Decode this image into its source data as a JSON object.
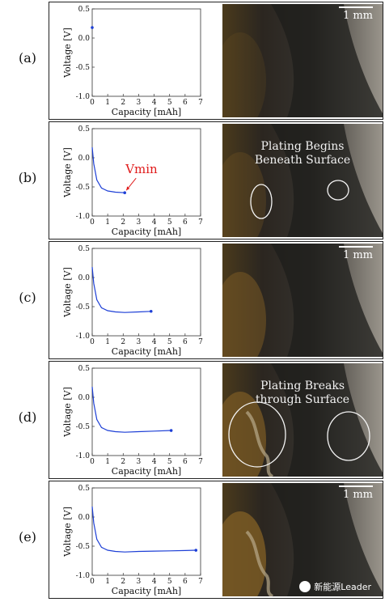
{
  "panels": [
    {
      "label": "(a)",
      "show_scale": true,
      "annotation": [],
      "vmin_label": "",
      "watermark": ""
    },
    {
      "label": "(b)",
      "show_scale": false,
      "annotation": [
        "Plating Begins",
        "Beneath Surface"
      ],
      "vmin_label": "Vmin",
      "watermark": ""
    },
    {
      "label": "(c)",
      "show_scale": true,
      "annotation": [],
      "vmin_label": "",
      "watermark": ""
    },
    {
      "label": "(d)",
      "show_scale": false,
      "annotation": [
        "Plating Breaks",
        "through Surface"
      ],
      "vmin_label": "",
      "watermark": ""
    },
    {
      "label": "(e)",
      "show_scale": true,
      "annotation": [],
      "vmin_label": "",
      "watermark": "新能源Leader"
    }
  ],
  "scale_label": "1 mm",
  "chart_data": [
    {
      "type": "line",
      "xlabel": "Capacity [mAh]",
      "ylabel": "Voltage [V]",
      "xlim": [
        0,
        7
      ],
      "ylim": [
        -1.0,
        0.5
      ],
      "xticks": [
        0,
        1,
        2,
        3,
        4,
        5,
        6,
        7
      ],
      "yticks": [
        0.5,
        0.0,
        -0.5,
        -1.0
      ],
      "x": [
        0.0
      ],
      "y": [
        0.18
      ],
      "end_marker": [
        0.0,
        0.18
      ]
    },
    {
      "type": "line",
      "xlabel": "Capacity [mAh]",
      "ylabel": "Voltage [V]",
      "xlim": [
        0,
        7
      ],
      "ylim": [
        -1.0,
        0.5
      ],
      "xticks": [
        0,
        1,
        2,
        3,
        4,
        5,
        6,
        7
      ],
      "yticks": [
        0.5,
        0.0,
        -0.5,
        -1.0
      ],
      "x": [
        0.0,
        0.1,
        0.3,
        0.6,
        1.0,
        1.5,
        2.1
      ],
      "y": [
        0.18,
        -0.1,
        -0.38,
        -0.52,
        -0.57,
        -0.59,
        -0.6
      ],
      "end_marker": [
        2.1,
        -0.6
      ]
    },
    {
      "type": "line",
      "xlabel": "Capacity [mAh]",
      "ylabel": "Voltage [V]",
      "xlim": [
        0,
        7
      ],
      "ylim": [
        -1.0,
        0.5
      ],
      "xticks": [
        0,
        1,
        2,
        3,
        4,
        5,
        6,
        7
      ],
      "yticks": [
        0.5,
        0.0,
        -0.5,
        -1.0
      ],
      "x": [
        0.0,
        0.1,
        0.3,
        0.6,
        1.0,
        1.5,
        2.1,
        3.0,
        3.8
      ],
      "y": [
        0.18,
        -0.1,
        -0.38,
        -0.52,
        -0.57,
        -0.59,
        -0.6,
        -0.59,
        -0.58
      ],
      "end_marker": [
        3.8,
        -0.58
      ]
    },
    {
      "type": "line",
      "xlabel": "Capacity [mAh]",
      "ylabel": "Voltage [V]",
      "xlim": [
        0,
        7
      ],
      "ylim": [
        -1.0,
        0.5
      ],
      "xticks": [
        0,
        1,
        2,
        3,
        4,
        5,
        6,
        7
      ],
      "yticks": [
        0.5,
        0.0,
        -0.5,
        -1.0
      ],
      "x": [
        0.0,
        0.1,
        0.3,
        0.6,
        1.0,
        1.5,
        2.1,
        3.0,
        4.0,
        5.1
      ],
      "y": [
        0.18,
        -0.1,
        -0.38,
        -0.52,
        -0.57,
        -0.59,
        -0.6,
        -0.59,
        -0.58,
        -0.57
      ],
      "end_marker": [
        5.1,
        -0.57
      ]
    },
    {
      "type": "line",
      "xlabel": "Capacity [mAh]",
      "ylabel": "Voltage [V]",
      "xlim": [
        0,
        7
      ],
      "ylim": [
        -1.0,
        0.5
      ],
      "xticks": [
        0,
        1,
        2,
        3,
        4,
        5,
        6,
        7
      ],
      "yticks": [
        0.5,
        0.0,
        -0.5,
        -1.0
      ],
      "x": [
        0.0,
        0.1,
        0.3,
        0.6,
        1.0,
        1.5,
        2.1,
        3.0,
        4.0,
        5.0,
        6.0,
        6.7
      ],
      "y": [
        0.18,
        -0.1,
        -0.38,
        -0.52,
        -0.57,
        -0.59,
        -0.6,
        -0.59,
        -0.585,
        -0.58,
        -0.575,
        -0.57
      ],
      "end_marker": [
        6.7,
        -0.57
      ]
    }
  ],
  "colors": {
    "series": "#1d3fd6",
    "vmin": "#e01b1b",
    "frame": "#222222",
    "photo_dark": "#2a2826",
    "rust": "#7a5a24"
  }
}
